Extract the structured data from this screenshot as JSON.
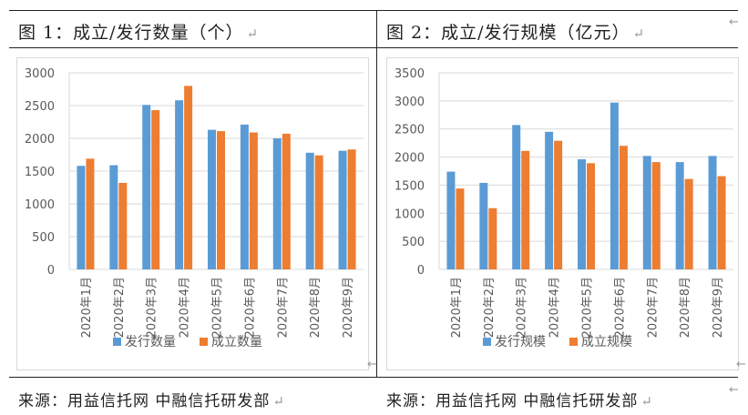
{
  "figure1": {
    "caption": "图 1：成立/发行数量（个）",
    "source": "来源：用益信托网 中融信托研发部"
  },
  "figure2": {
    "caption": "图 2：成立/发行规模（亿元）",
    "source": "来源：用益信托网 中融信托研发部"
  },
  "return_mark": "↵",
  "side_mark": "←",
  "colors": {
    "series_blue": "#5b9bd5",
    "series_orange": "#ed7d31",
    "grid": "#d9d9d9",
    "axis_text": "#595959"
  },
  "chart_data": [
    {
      "type": "bar",
      "categories": [
        "2020年1月",
        "2020年2月",
        "2020年3月",
        "2020年4月",
        "2020年5月",
        "2020年6月",
        "2020年7月",
        "2020年8月",
        "2020年9月"
      ],
      "series": [
        {
          "name": "发行数量",
          "values": [
            1580,
            1590,
            2510,
            2580,
            2130,
            2210,
            2000,
            1780,
            1810
          ]
        },
        {
          "name": "成立数量",
          "values": [
            1690,
            1320,
            2430,
            2800,
            2110,
            2090,
            2070,
            1740,
            1830
          ]
        }
      ],
      "ylim": [
        0,
        3000
      ],
      "yticks": [
        0,
        500,
        1000,
        1500,
        2000,
        2500,
        3000
      ],
      "legend": "bottom"
    },
    {
      "type": "bar",
      "categories": [
        "2020年1月",
        "2020年2月",
        "2020年3月",
        "2020年4月",
        "2020年5月",
        "2020年6月",
        "2020年7月",
        "2020年8月",
        "2020年9月"
      ],
      "series": [
        {
          "name": "发行规模",
          "values": [
            1740,
            1540,
            2570,
            2450,
            1960,
            2970,
            2020,
            1910,
            2020
          ]
        },
        {
          "name": "成立规模",
          "values": [
            1440,
            1090,
            2110,
            2290,
            1890,
            2200,
            1910,
            1610,
            1660
          ]
        }
      ],
      "ylim": [
        0,
        3500
      ],
      "yticks": [
        0,
        500,
        1000,
        1500,
        2000,
        2500,
        3000,
        3500
      ],
      "legend": "bottom"
    }
  ]
}
